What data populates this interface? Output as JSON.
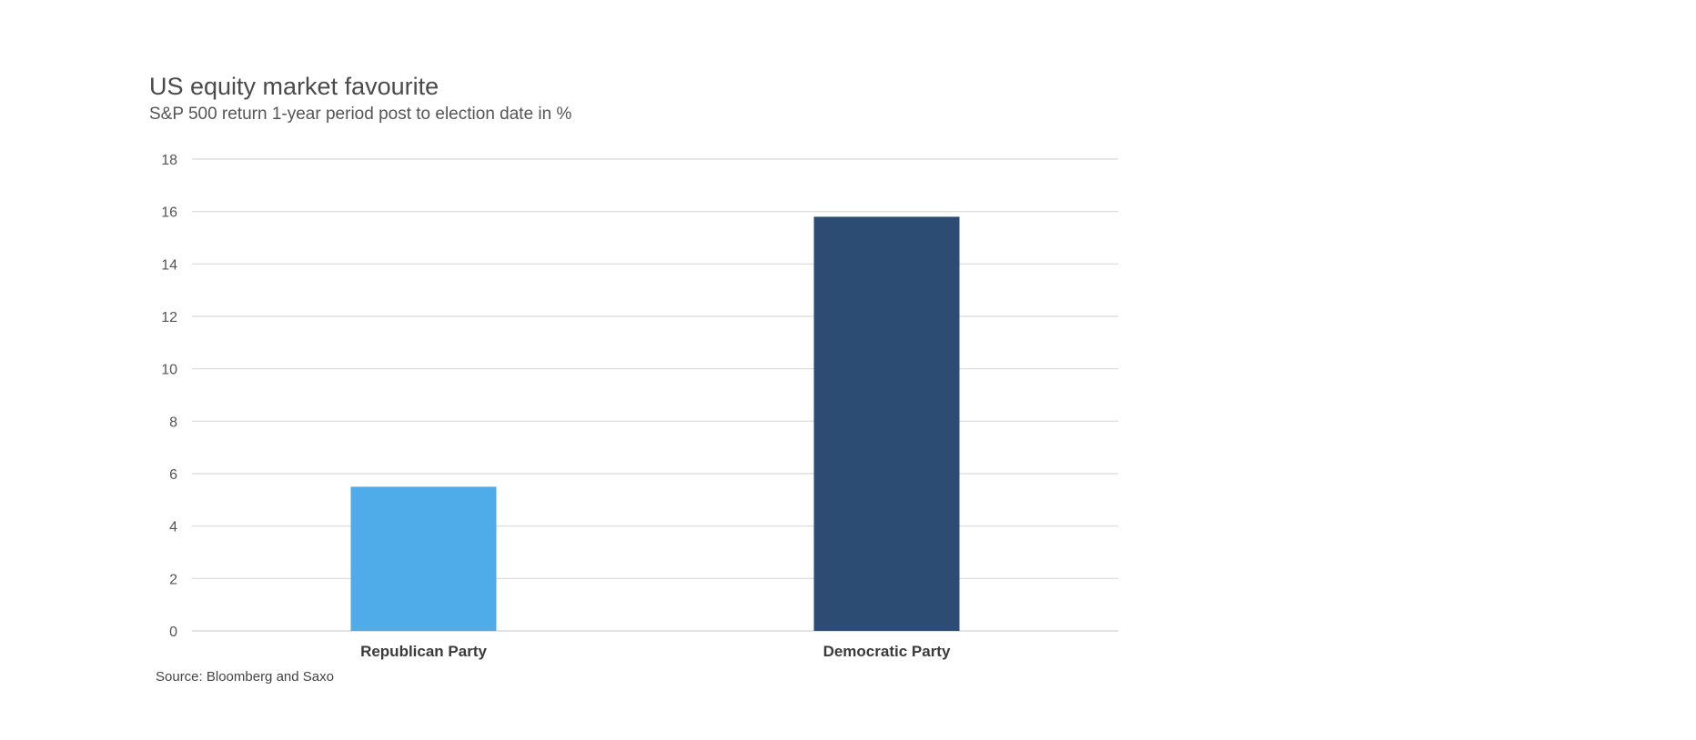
{
  "chart_data": {
    "type": "bar",
    "title": "US equity market favourite",
    "subtitle": "S&P 500 return 1-year period post to election date in %",
    "categories": [
      "Republican Party",
      "Democratic Party"
    ],
    "values": [
      5.5,
      15.8
    ],
    "colors": [
      "#4FACE9",
      "#2C4C74"
    ],
    "xlabel": "",
    "ylabel": "",
    "ylim": [
      0,
      18
    ],
    "yticks": [
      "0",
      "2",
      "4",
      "6",
      "8",
      "10",
      "12",
      "14",
      "16",
      "18"
    ],
    "grid": true,
    "legend": "none",
    "source": "Source: Bloomberg and Saxo"
  }
}
